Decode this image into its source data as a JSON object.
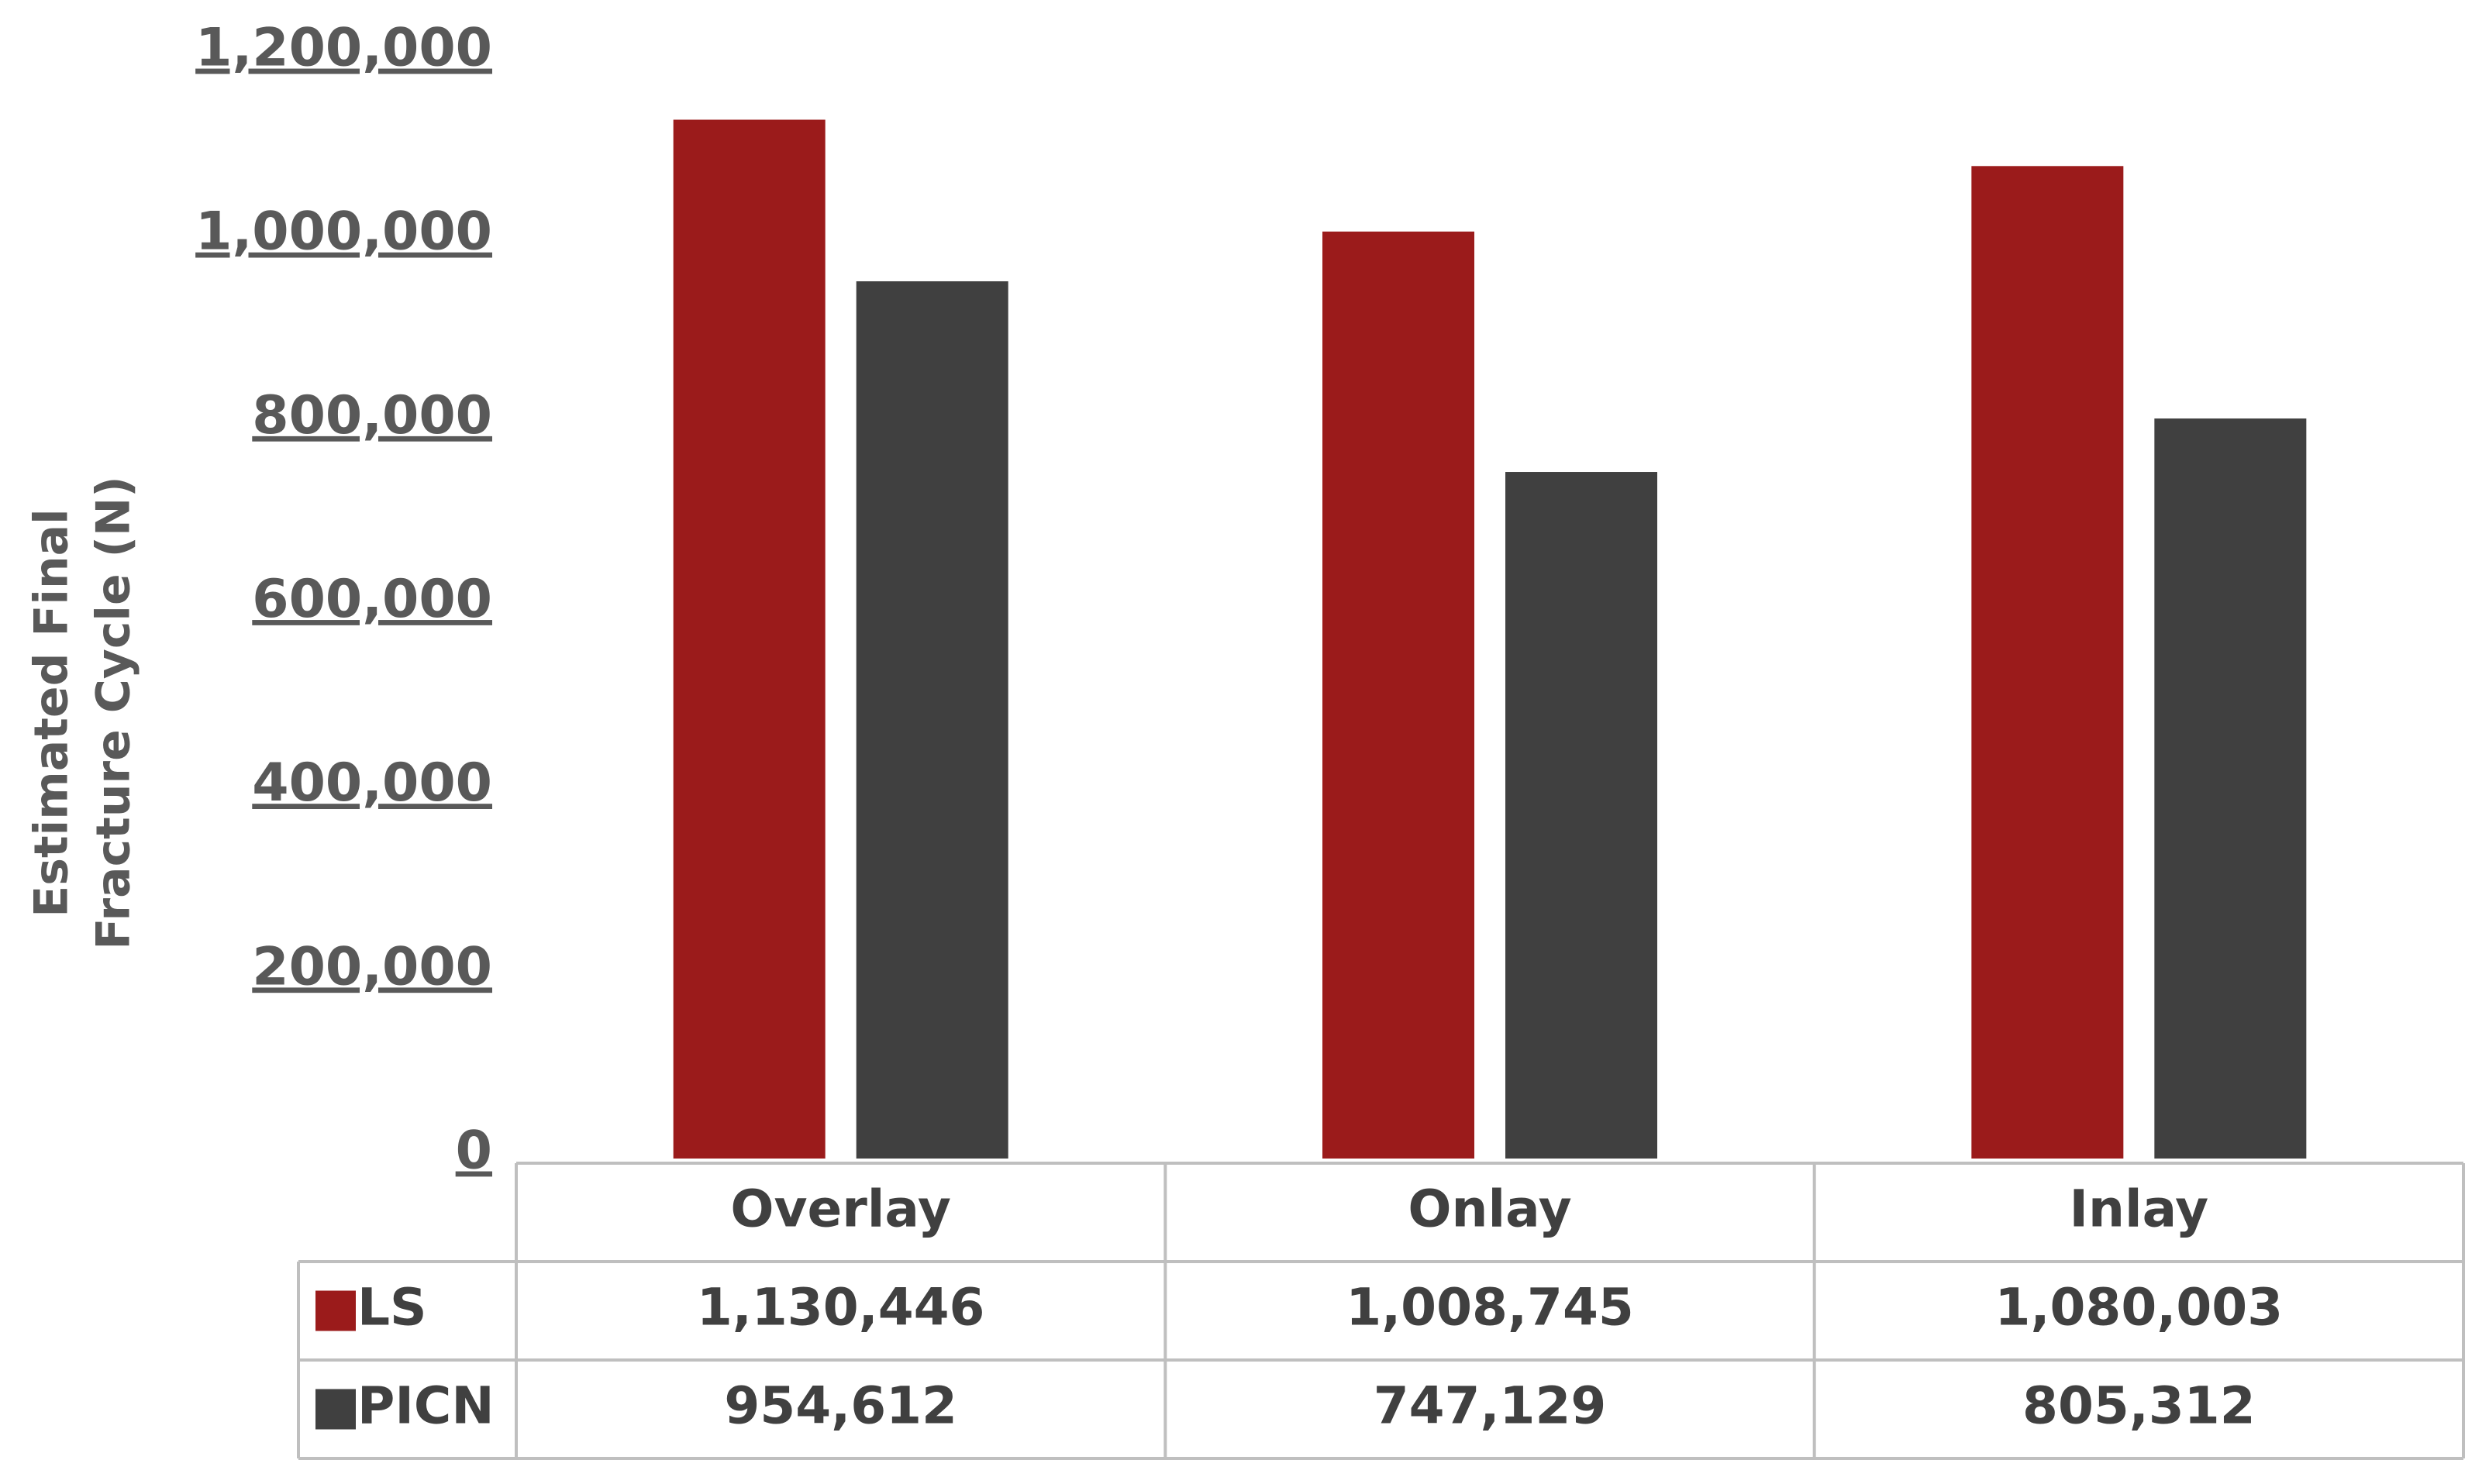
{
  "chart_data": {
    "type": "bar",
    "y_label": [
      "Estimated Final",
      "Fracture Cycle (N)"
    ],
    "categories": [
      "Overlay",
      "Onlay",
      "Inlay"
    ],
    "series": [
      {
        "name": "LS",
        "color": "#9b1b1b",
        "values": [
          1130446,
          1008745,
          1080003
        ],
        "value_labels": [
          "1,130,446",
          "1,008,745",
          "1,080,003"
        ]
      },
      {
        "name": "PICN",
        "color": "#404040",
        "values": [
          954612,
          747129,
          805312
        ],
        "value_labels": [
          "954,612",
          "747,129",
          "805,312"
        ]
      }
    ],
    "ylim": [
      0,
      1200000
    ],
    "yticks": [
      0,
      {
        "value": 200000,
        "label": "200,000"
      },
      {
        "value": 400000,
        "label": "400,000"
      },
      {
        "value": 600000,
        "label": "600,000"
      },
      {
        "value": 800000,
        "label": "800,000"
      },
      {
        "value": 1000000,
        "label": "1,000,000"
      },
      {
        "value": 1200000,
        "label": "1,200,000"
      }
    ],
    "grid": false,
    "data_table": true
  }
}
